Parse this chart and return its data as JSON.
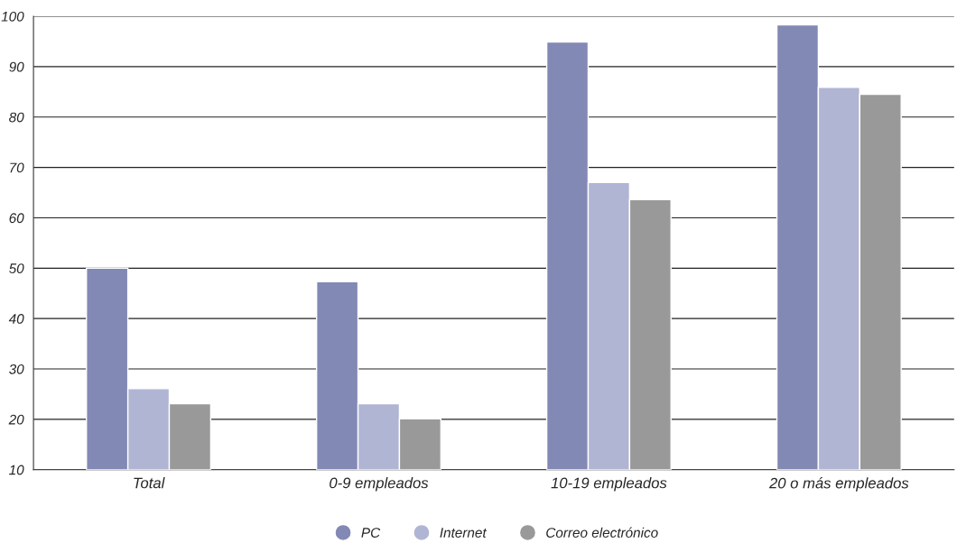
{
  "chart_data": {
    "type": "bar",
    "categories": [
      "Total",
      "0-9 empleados",
      "10-19 empleados",
      "20 o más empleados"
    ],
    "series": [
      {
        "name": "PC",
        "color": "#8389b5",
        "values": [
          50.0,
          47.3,
          94.9,
          98.3
        ]
      },
      {
        "name": "Internet",
        "color": "#b1b5d4",
        "values": [
          26.1,
          23.1,
          67.0,
          85.9
        ]
      },
      {
        "name": "Correo electrónico",
        "color": "#999999",
        "values": [
          23.1,
          20.1,
          63.6,
          84.5
        ]
      }
    ],
    "ylim": [
      10,
      100
    ],
    "yticks": [
      10,
      20,
      30,
      40,
      50,
      60,
      70,
      80,
      90,
      100
    ],
    "grid": "y",
    "legend": "bottom"
  }
}
